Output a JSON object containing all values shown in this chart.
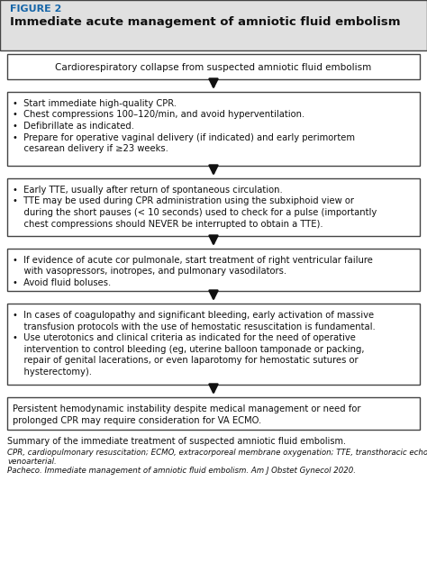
{
  "figure_label": "FIGURE 2",
  "figure_title": "Immediate acute management of amniotic fluid embolism",
  "header_bg": "#e0e0e0",
  "box_bg": "#ffffff",
  "box_border": "#444444",
  "arrow_color": "#111111",
  "title_color": "#1565a8",
  "body_text_color": "#111111",
  "top_box_text": "Cardiorespiratory collapse from suspected amniotic fluid embolism",
  "box1_lines": [
    "•  Start immediate high-quality CPR.",
    "•  Chest compressions 100–120/min, and avoid hyperventilation.",
    "•  Defibrillate as indicated.",
    "•  Prepare for operative vaginal delivery (if indicated) and early perimortem",
    "    cesarean delivery if ≥23 weeks."
  ],
  "box2_lines": [
    "•  Early TTE, usually after return of spontaneous circulation.",
    "•  TTE may be used during CPR administration using the subxiphoid view or",
    "    during the short pauses (< 10 seconds) used to check for a pulse (importantly",
    "    chest compressions should NEVER be interrupted to obtain a TTE)."
  ],
  "box3_lines": [
    "•  If evidence of acute cor pulmonale, start treatment of right ventricular failure",
    "    with vasopressors, inotropes, and pulmonary vasodilators.",
    "•  Avoid fluid boluses."
  ],
  "box4_lines": [
    "•  In cases of coagulopathy and significant bleeding, early activation of massive",
    "    transfusion protocols with the use of hemostatic resuscitation is fundamental.",
    "•  Use uterotonics and clinical criteria as indicated for the need of operative",
    "    intervention to control bleeding (eg, uterine balloon tamponade or packing,",
    "    repair of genital lacerations, or even laparotomy for hemostatic sutures or",
    "    hysterectomy)."
  ],
  "bottom_box_lines": [
    "Persistent hemodynamic instability despite medical management or need for",
    "prolonged CPR may require consideration for VA ECMO."
  ],
  "summary": "Summary of the immediate treatment of suspected amniotic fluid embolism.",
  "footnote": "CPR, cardiopulmonary resuscitation; ECMO, extracorporeal membrane oxygenation; TTE, transthoracic echocardiography; VA,",
  "footnote2": "venoarterial.",
  "citation": "Pacheco. Immediate management of amniotic fluid embolism. Am J Obstet Gynecol 2020.",
  "fig_w": 4.74,
  "fig_h": 6.45,
  "dpi": 100
}
